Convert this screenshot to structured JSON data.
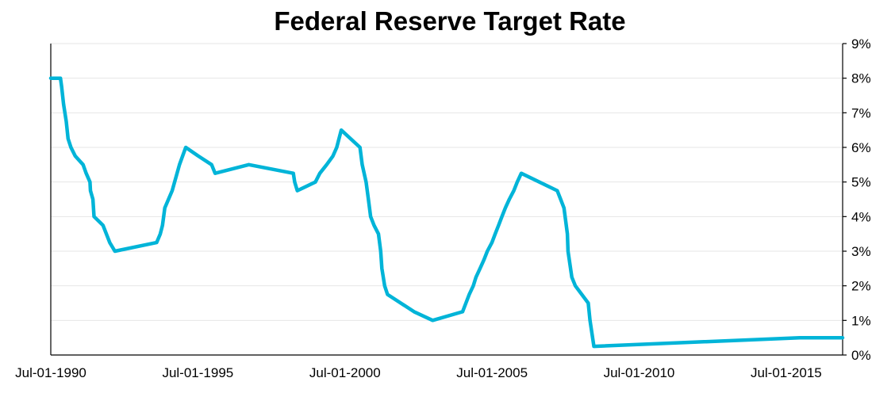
{
  "chart_data": {
    "type": "line",
    "title": "Federal Reserve Target Rate",
    "xlabel": "",
    "ylabel": "",
    "x_ticks": [
      "Jul-01-1990",
      "Jul-01-1995",
      "Jul-01-2000",
      "Jul-01-2005",
      "Jul-01-2010",
      "Jul-01-2015"
    ],
    "xlim": [
      "1990-07-01",
      "2017-06-01"
    ],
    "ylim": [
      0,
      9
    ],
    "y_ticks": [
      "0%",
      "1%",
      "2%",
      "3%",
      "4%",
      "5%",
      "6%",
      "7%",
      "8%",
      "9%"
    ],
    "y_axis_side": "right",
    "grid": true,
    "series": [
      {
        "color": "#00b4d8",
        "points": [
          [
            "1990-07-01",
            8.0
          ],
          [
            "1990-10-29",
            8.0
          ],
          [
            "1990-11-13",
            7.75
          ],
          [
            "1990-12-07",
            7.25
          ],
          [
            "1991-01-09",
            6.75
          ],
          [
            "1991-02-01",
            6.25
          ],
          [
            "1991-03-08",
            6.0
          ],
          [
            "1991-04-30",
            5.75
          ],
          [
            "1991-08-06",
            5.5
          ],
          [
            "1991-09-13",
            5.25
          ],
          [
            "1991-10-31",
            5.0
          ],
          [
            "1991-11-06",
            4.75
          ],
          [
            "1991-12-06",
            4.5
          ],
          [
            "1991-12-20",
            4.0
          ],
          [
            "1992-04-09",
            3.75
          ],
          [
            "1992-07-02",
            3.25
          ],
          [
            "1992-09-04",
            3.0
          ],
          [
            "1994-02-04",
            3.25
          ],
          [
            "1994-03-22",
            3.5
          ],
          [
            "1994-04-18",
            3.75
          ],
          [
            "1994-05-17",
            4.25
          ],
          [
            "1994-08-16",
            4.75
          ],
          [
            "1994-11-15",
            5.5
          ],
          [
            "1995-02-01",
            6.0
          ],
          [
            "1995-07-06",
            5.75
          ],
          [
            "1995-12-19",
            5.5
          ],
          [
            "1996-01-31",
            5.25
          ],
          [
            "1997-03-25",
            5.5
          ],
          [
            "1998-09-29",
            5.25
          ],
          [
            "1998-10-15",
            5.0
          ],
          [
            "1998-11-17",
            4.75
          ],
          [
            "1999-06-30",
            5.0
          ],
          [
            "1999-08-24",
            5.25
          ],
          [
            "1999-11-16",
            5.5
          ],
          [
            "2000-02-02",
            5.75
          ],
          [
            "2000-03-21",
            6.0
          ],
          [
            "2000-05-16",
            6.5
          ],
          [
            "2001-01-03",
            6.0
          ],
          [
            "2001-01-31",
            5.5
          ],
          [
            "2001-03-20",
            5.0
          ],
          [
            "2001-04-18",
            4.5
          ],
          [
            "2001-05-15",
            4.0
          ],
          [
            "2001-06-27",
            3.75
          ],
          [
            "2001-08-21",
            3.5
          ],
          [
            "2001-09-17",
            3.0
          ],
          [
            "2001-10-02",
            2.5
          ],
          [
            "2001-11-06",
            2.0
          ],
          [
            "2001-12-11",
            1.75
          ],
          [
            "2002-11-06",
            1.25
          ],
          [
            "2003-06-25",
            1.0
          ],
          [
            "2004-06-30",
            1.25
          ],
          [
            "2004-08-10",
            1.5
          ],
          [
            "2004-09-21",
            1.75
          ],
          [
            "2004-11-10",
            2.0
          ],
          [
            "2004-12-14",
            2.25
          ],
          [
            "2005-02-02",
            2.5
          ],
          [
            "2005-03-22",
            2.75
          ],
          [
            "2005-05-03",
            3.0
          ],
          [
            "2005-06-30",
            3.25
          ],
          [
            "2005-08-09",
            3.5
          ],
          [
            "2005-09-20",
            3.75
          ],
          [
            "2005-11-01",
            4.0
          ],
          [
            "2005-12-13",
            4.25
          ],
          [
            "2006-01-31",
            4.5
          ],
          [
            "2006-03-28",
            4.75
          ],
          [
            "2006-05-10",
            5.0
          ],
          [
            "2006-06-29",
            5.25
          ],
          [
            "2007-09-18",
            4.75
          ],
          [
            "2007-10-31",
            4.5
          ],
          [
            "2007-12-11",
            4.25
          ],
          [
            "2008-01-22",
            3.5
          ],
          [
            "2008-01-30",
            3.0
          ],
          [
            "2008-03-18",
            2.25
          ],
          [
            "2008-04-30",
            2.0
          ],
          [
            "2008-10-08",
            1.5
          ],
          [
            "2008-10-29",
            1.0
          ],
          [
            "2008-12-16",
            0.25
          ],
          [
            "2015-12-16",
            0.5
          ],
          [
            "2017-06-01",
            0.5
          ]
        ]
      }
    ]
  }
}
